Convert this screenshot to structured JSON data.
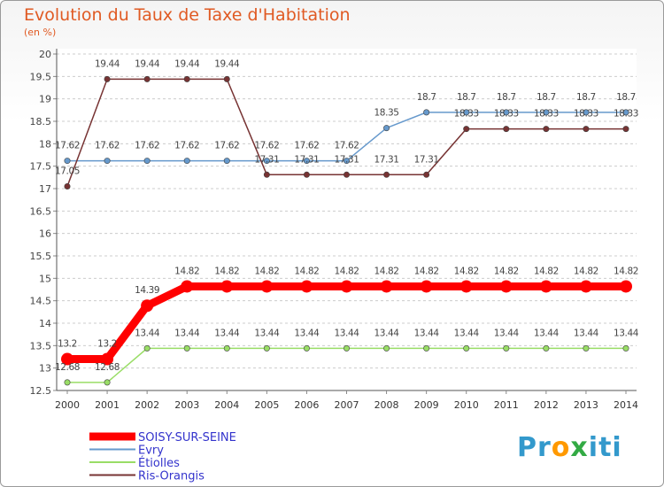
{
  "chart_data": {
    "type": "line",
    "title": "Evolution du Taux de Taxe d'Habitation",
    "subtitle": "(en %)",
    "x": [
      "2000",
      "2001",
      "2002",
      "2003",
      "2004",
      "2005",
      "2006",
      "2007",
      "2008",
      "2009",
      "2010",
      "2011",
      "2012",
      "2013",
      "2014"
    ],
    "ylim": [
      12.5,
      20
    ],
    "yticks": [
      "12.5",
      "13",
      "13.5",
      "14",
      "14.5",
      "15",
      "15.5",
      "16",
      "16.5",
      "17",
      "17.5",
      "18",
      "18.5",
      "19",
      "19.5",
      "20"
    ],
    "grid": "horizontal dashed",
    "legend_position": "bottom-left",
    "series": [
      {
        "name": "SOISY-SUR-SEINE",
        "color": "#ff0000",
        "values": [
          13.2,
          13.2,
          14.39,
          14.82,
          14.82,
          14.82,
          14.82,
          14.82,
          14.82,
          14.82,
          14.82,
          14.82,
          14.82,
          14.82,
          14.82
        ],
        "labels": [
          "13.2",
          "13.2",
          "14.39",
          "14.82",
          "14.82",
          "14.82",
          "14.82",
          "14.82",
          "14.82",
          "14.82",
          "14.82",
          "14.82",
          "14.82",
          "14.82",
          "14.82"
        ]
      },
      {
        "name": "Evry",
        "color": "#6699cc",
        "values": [
          17.62,
          17.62,
          17.62,
          17.62,
          17.62,
          17.62,
          17.62,
          17.62,
          18.35,
          18.7,
          18.7,
          18.7,
          18.7,
          18.7,
          18.7
        ],
        "labels": [
          "17.62",
          "17.62",
          "17.62",
          "17.62",
          "17.62",
          "17.62",
          "17.62",
          "17.62",
          "18.35",
          "18.7",
          "18.7",
          "18.7",
          "18.7",
          "18.7",
          "18.7"
        ]
      },
      {
        "name": "Étiolles",
        "color": "#99dd66",
        "values": [
          12.68,
          12.68,
          13.44,
          13.44,
          13.44,
          13.44,
          13.44,
          13.44,
          13.44,
          13.44,
          13.44,
          13.44,
          13.44,
          13.44,
          13.44
        ],
        "labels": [
          "12.68",
          "12.68",
          "13.44",
          "13.44",
          "13.44",
          "13.44",
          "13.44",
          "13.44",
          "13.44",
          "13.44",
          "13.44",
          "13.44",
          "13.44",
          "13.44",
          "13.44"
        ]
      },
      {
        "name": "Ris-Orangis",
        "color": "#773333",
        "values": [
          17.05,
          19.44,
          19.44,
          19.44,
          19.44,
          17.31,
          17.31,
          17.31,
          17.31,
          17.31,
          18.33,
          18.33,
          18.33,
          18.33,
          18.33
        ],
        "labels": [
          "17.05",
          "19.44",
          "19.44",
          "19.44",
          "19.44",
          "17.31",
          "17.31",
          "17.31",
          "17.31",
          "17.31",
          "18.33",
          "18.33",
          "18.33",
          "18.33",
          "18.33"
        ]
      }
    ]
  },
  "logo": {
    "text": "Proxiti"
  }
}
